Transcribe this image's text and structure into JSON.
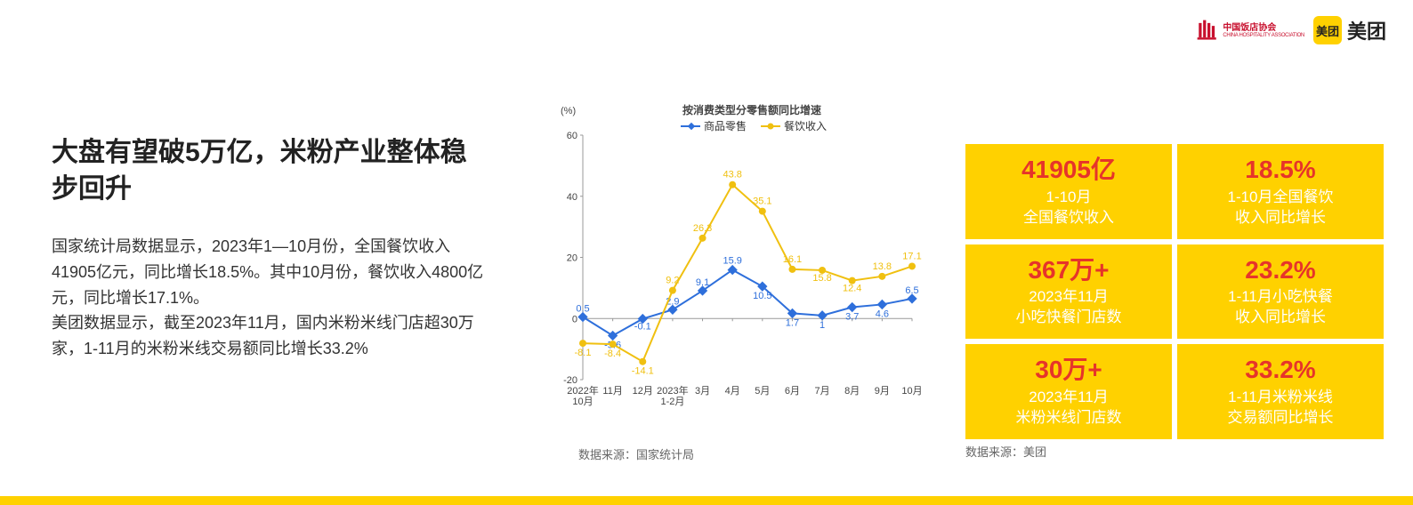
{
  "logos": {
    "cha_cn": "中国饭店协会",
    "cha_en": "CHINA HOSPITALITY ASSOCIATION",
    "meituan_sq": "美团",
    "meituan_txt": "美团"
  },
  "title": "大盘有望破5万亿，米粉产业整体稳步回升",
  "body_p1": "国家统计局数据显示，2023年1—10月份，全国餐饮收入41905亿元，同比增长18.5%。其中10月份，餐饮收入4800亿元，同比增长17.1%。",
  "body_p2": "美团数据显示，截至2023年11月，国内米粉米线门店超30万家，1-11月的米粉米线交易额同比增长33.2%",
  "chart": {
    "type": "line",
    "title": "按消费类型分零售额同比增速",
    "y_unit": "(%)",
    "ylim": [
      -20,
      60
    ],
    "ytick_step": 20,
    "yticks": [
      -20,
      0,
      20,
      40,
      60
    ],
    "x_labels": [
      "2022年\n10月",
      "11月",
      "12月",
      "2023年\n1-2月",
      "3月",
      "4月",
      "5月",
      "6月",
      "7月",
      "8月",
      "9月",
      "10月"
    ],
    "series": [
      {
        "name": "商品零售",
        "color": "#2e6fdb",
        "marker": "diamond",
        "values": [
          0.5,
          -5.6,
          -0.1,
          2.9,
          9.1,
          15.9,
          10.5,
          1.7,
          1.0,
          3.7,
          4.6,
          6.5
        ],
        "label_points": [
          0.5,
          -5.6,
          -0.1,
          2.9,
          9.1,
          15.9,
          10.5,
          1.7,
          1.0,
          3.7,
          4.6,
          6.5
        ]
      },
      {
        "name": "餐饮收入",
        "color": "#f0c010",
        "marker": "circle",
        "values": [
          -8.1,
          -8.4,
          -14.1,
          9.2,
          26.3,
          43.8,
          35.1,
          16.1,
          15.8,
          12.4,
          13.8,
          17.1
        ],
        "label_points": [
          -8.1,
          -8.4,
          -14.1,
          9.2,
          26.3,
          43.8,
          35.1,
          16.1,
          15.8,
          12.4,
          13.8,
          17.1
        ]
      }
    ],
    "plot_bg": "#ffffff",
    "axis_color": "#999999",
    "line_width": 2,
    "marker_size": 4
  },
  "chart_source": "数据来源：国家统计局",
  "stats": [
    {
      "value": "41905亿",
      "label": "1-10月\n全国餐饮收入"
    },
    {
      "value": "18.5%",
      "label": "1-10月全国餐饮\n收入同比增长"
    },
    {
      "value": "367万+",
      "label": "2023年11月\n小吃快餐门店数"
    },
    {
      "value": "23.2%",
      "label": "1-11月小吃快餐\n收入同比增长"
    },
    {
      "value": "30万+",
      "label": "2023年11月\n米粉米线门店数"
    },
    {
      "value": "33.2%",
      "label": "1-11月米粉米线\n交易额同比增长"
    }
  ],
  "stats_source": "数据来源：美团",
  "colors": {
    "brand_yellow": "#ffd100",
    "stat_value": "#e6342a",
    "stat_label": "#ffffff",
    "cha_red": "#c8102e"
  }
}
